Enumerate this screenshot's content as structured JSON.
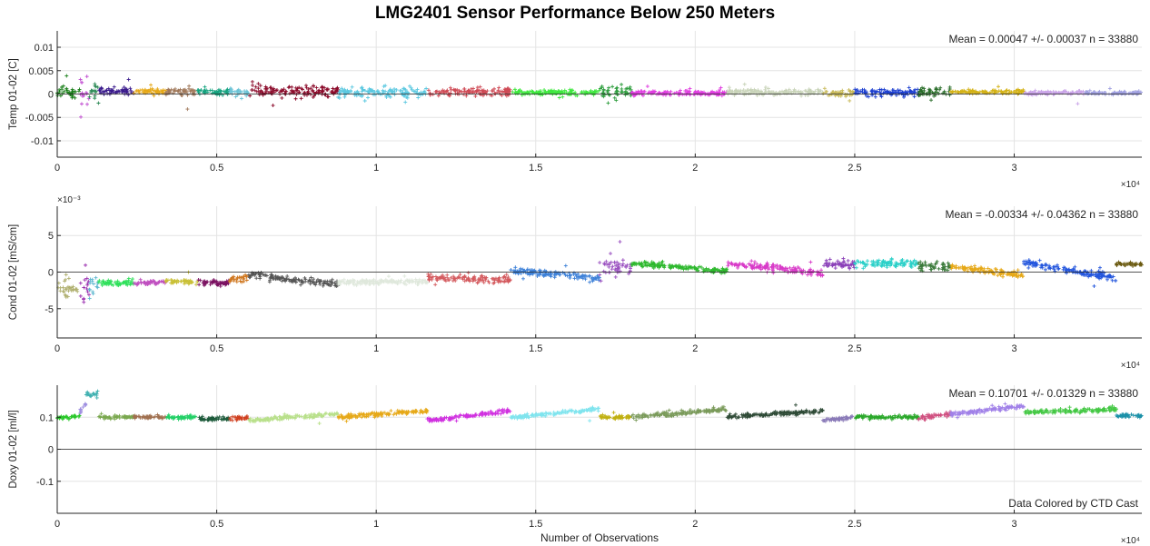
{
  "page": {
    "title": "LMG2401 Sensor Performance Below 250 Meters",
    "xlabel": "Number of Observations",
    "footnote": "Data Colored by CTD Cast"
  },
  "chart_data": [
    {
      "type": "scatter",
      "name": "temp",
      "ylabel": "Temp 01-02 [C]",
      "annotation": "Mean = 0.00047  +/-  0.00037  n = 33880",
      "xlim": [
        0,
        34000
      ],
      "ylim": [
        -0.0135,
        0.0135
      ],
      "x_ticks": [
        0,
        5000,
        10000,
        15000,
        20000,
        25000,
        30000
      ],
      "x_tick_labels": [
        "0",
        "0.5",
        "1",
        "1.5",
        "2",
        "2.5",
        "3"
      ],
      "x_exponent": "×10⁴",
      "y_ticks": [
        -0.01,
        -0.005,
        0,
        0.005,
        0.01
      ],
      "y_tick_labels": [
        "-0.01",
        "-0.005",
        "0",
        "0.005",
        "0.01"
      ],
      "y_exponent": "",
      "grid": true,
      "zero_line": true,
      "segments": [
        {
          "x": [
            0,
            700
          ],
          "y": [
            0.0006,
            0.0006
          ],
          "spread": 0.002,
          "color": "#1a7f1a"
        },
        {
          "x": [
            700,
            1000
          ],
          "y": [
            0.0005,
            0.0005
          ],
          "spread": 0.004,
          "color": "#c04bd0"
        },
        {
          "x": [
            1000,
            1300
          ],
          "y": [
            0.0006,
            0.0006
          ],
          "spread": 0.0025,
          "color": "#2e8b57"
        },
        {
          "x": [
            1300,
            2400
          ],
          "y": [
            0.0006,
            0.0006
          ],
          "spread": 0.0008,
          "color": "#3a1a8c"
        },
        {
          "x": [
            2400,
            3400
          ],
          "y": [
            0.0005,
            0.0005
          ],
          "spread": 0.0006,
          "color": "#e6a817"
        },
        {
          "x": [
            3400,
            4400
          ],
          "y": [
            0.0005,
            0.0005
          ],
          "spread": 0.0007,
          "color": "#a0785a"
        },
        {
          "x": [
            4400,
            5400
          ],
          "y": [
            0.0005,
            0.0005
          ],
          "spread": 0.0007,
          "color": "#14a37f"
        },
        {
          "x": [
            5400,
            6000
          ],
          "y": [
            0.0004,
            0.0004
          ],
          "spread": 0.0009,
          "color": "#6bc3d6"
        },
        {
          "x": [
            6000,
            8800
          ],
          "y": [
            0.0006,
            0.0006
          ],
          "spread": 0.0012,
          "color": "#8b0a2a"
        },
        {
          "x": [
            8800,
            11600
          ],
          "y": [
            0.0003,
            0.0003
          ],
          "spread": 0.0012,
          "color": "#5bc8e0"
        },
        {
          "x": [
            11600,
            14200
          ],
          "y": [
            0.0004,
            0.0004
          ],
          "spread": 0.0009,
          "color": "#cf4a55"
        },
        {
          "x": [
            14200,
            17000
          ],
          "y": [
            0.0003,
            0.0003
          ],
          "spread": 0.0006,
          "color": "#3ee83e"
        },
        {
          "x": [
            17000,
            18000
          ],
          "y": [
            0.0004,
            0.0004
          ],
          "spread": 0.0016,
          "color": "#2f9e3f"
        },
        {
          "x": [
            18000,
            21000
          ],
          "y": [
            0.0002,
            0.0002
          ],
          "spread": 0.0006,
          "color": "#e03ce0"
        },
        {
          "x": [
            21000,
            24000
          ],
          "y": [
            0.0004,
            0.0004
          ],
          "spread": 0.0007,
          "color": "#c8d3b8"
        },
        {
          "x": [
            24000,
            25000
          ],
          "y": [
            0.0003,
            0.0003
          ],
          "spread": 0.0008,
          "color": "#c9ba5a"
        },
        {
          "x": [
            25000,
            27000
          ],
          "y": [
            0.0003,
            0.0003
          ],
          "spread": 0.0008,
          "color": "#1c3fd0"
        },
        {
          "x": [
            27000,
            28000
          ],
          "y": [
            0.0004,
            0.0004
          ],
          "spread": 0.0012,
          "color": "#2a6e2a"
        },
        {
          "x": [
            28000,
            30300
          ],
          "y": [
            0.0004,
            0.0004
          ],
          "spread": 0.0005,
          "color": "#d4b216"
        },
        {
          "x": [
            30300,
            32200
          ],
          "y": [
            0.0003,
            0.0003
          ],
          "spread": 0.0005,
          "color": "#c9a3e8"
        },
        {
          "x": [
            32200,
            34000
          ],
          "y": [
            0.0002,
            0.0002
          ],
          "spread": 0.0004,
          "color": "#9f9fe0"
        }
      ]
    },
    {
      "type": "scatter",
      "name": "cond",
      "ylabel": "Cond 01-02 [mS/cm]",
      "annotation": "Mean = -0.00334  +/-  0.04362  n = 33880",
      "xlim": [
        0,
        34000
      ],
      "ylim": [
        -9,
        9
      ],
      "x_ticks": [
        0,
        5000,
        10000,
        15000,
        20000,
        25000,
        30000
      ],
      "x_tick_labels": [
        "0",
        "0.5",
        "1",
        "1.5",
        "2",
        "2.5",
        "3"
      ],
      "x_exponent": "×10⁴",
      "y_ticks": [
        -5,
        0,
        5
      ],
      "y_tick_labels": [
        "-5",
        "0",
        "5"
      ],
      "y_exponent": "×10⁻³",
      "grid": true,
      "zero_line": true,
      "segments": [
        {
          "x": [
            0,
            700
          ],
          "y": [
            -2.5,
            -2.2
          ],
          "spread": 1.2,
          "color": "#b0b070"
        },
        {
          "x": [
            700,
            1000
          ],
          "y": [
            -2.0,
            -1.8
          ],
          "spread": 2.5,
          "color": "#9b30b0"
        },
        {
          "x": [
            1000,
            1300
          ],
          "y": [
            -1.8,
            -1.6
          ],
          "spread": 1.2,
          "color": "#5fb8d0"
        },
        {
          "x": [
            1300,
            2400
          ],
          "y": [
            -1.6,
            -1.4
          ],
          "spread": 0.4,
          "color": "#2ee05a"
        },
        {
          "x": [
            2400,
            3400
          ],
          "y": [
            -1.5,
            -1.4
          ],
          "spread": 0.4,
          "color": "#c050c0"
        },
        {
          "x": [
            3400,
            4400
          ],
          "y": [
            -1.3,
            -1.4
          ],
          "spread": 0.4,
          "color": "#c9c037"
        },
        {
          "x": [
            4400,
            5400
          ],
          "y": [
            -1.6,
            -1.4
          ],
          "spread": 0.4,
          "color": "#7a1060"
        },
        {
          "x": [
            5400,
            6000
          ],
          "y": [
            -1.1,
            -0.7
          ],
          "spread": 0.5,
          "color": "#d07820"
        },
        {
          "x": [
            6000,
            8800
          ],
          "y": [
            -0.4,
            -1.7
          ],
          "spread": 0.5,
          "color": "#555555"
        },
        {
          "x": [
            8800,
            11600
          ],
          "y": [
            -1.3,
            -1.3
          ],
          "spread": 0.4,
          "color": "#dfe8dc"
        },
        {
          "x": [
            11600,
            14200
          ],
          "y": [
            -0.7,
            -1.1
          ],
          "spread": 0.5,
          "color": "#d45a5e"
        },
        {
          "x": [
            14200,
            17000
          ],
          "y": [
            0.2,
            -0.8
          ],
          "spread": 0.5,
          "color": "#3c80d8"
        },
        {
          "x": [
            17000,
            18000
          ],
          "y": [
            0.4,
            0.8
          ],
          "spread": 1.4,
          "color": "#9a50c0"
        },
        {
          "x": [
            18000,
            21000
          ],
          "y": [
            1.2,
            0.2
          ],
          "spread": 0.4,
          "color": "#2db82d"
        },
        {
          "x": [
            21000,
            24000
          ],
          "y": [
            1.2,
            -0.2
          ],
          "spread": 0.5,
          "color": "#d83ac8"
        },
        {
          "x": [
            24000,
            25000
          ],
          "y": [
            1.2,
            1.0
          ],
          "spread": 0.6,
          "color": "#8a3fb8"
        },
        {
          "x": [
            25000,
            27000
          ],
          "y": [
            1.1,
            1.2
          ],
          "spread": 0.5,
          "color": "#2ad0c8"
        },
        {
          "x": [
            27000,
            28000
          ],
          "y": [
            1.0,
            0.6
          ],
          "spread": 0.8,
          "color": "#3a7a3a"
        },
        {
          "x": [
            28000,
            30300
          ],
          "y": [
            0.8,
            -0.5
          ],
          "spread": 0.4,
          "color": "#e6a817"
        },
        {
          "x": [
            30300,
            33200
          ],
          "y": [
            1.3,
            -0.9
          ],
          "spread": 0.5,
          "color": "#2255dd"
        },
        {
          "x": [
            33200,
            34000
          ],
          "y": [
            1.1,
            1.1
          ],
          "spread": 0.3,
          "color": "#6b5a10"
        }
      ]
    },
    {
      "type": "scatter",
      "name": "doxy",
      "ylabel": "Doxy 01-02 [ml/l]",
      "annotation": "Mean = 0.10701  +/-  0.01329  n = 33880",
      "xlim": [
        0,
        34000
      ],
      "ylim": [
        -0.2,
        0.2
      ],
      "x_ticks": [
        0,
        5000,
        10000,
        15000,
        20000,
        25000,
        30000
      ],
      "x_tick_labels": [
        "0",
        "0.5",
        "1",
        "1.5",
        "2",
        "2.5",
        "3"
      ],
      "x_exponent": "×10⁴",
      "y_ticks": [
        -0.1,
        0,
        0.1
      ],
      "y_tick_labels": [
        "-0.1",
        "0",
        "0.1"
      ],
      "y_exponent": "",
      "grid": true,
      "zero_line": true,
      "segments": [
        {
          "x": [
            0,
            700
          ],
          "y": [
            0.1,
            0.1
          ],
          "spread": 0.006,
          "color": "#2ac82a"
        },
        {
          "x": [
            700,
            900
          ],
          "y": [
            0.12,
            0.14
          ],
          "spread": 0.01,
          "color": "#9f8fe0"
        },
        {
          "x": [
            900,
            1300
          ],
          "y": [
            0.175,
            0.17
          ],
          "spread": 0.01,
          "color": "#3fb0b0"
        },
        {
          "x": [
            1300,
            2400
          ],
          "y": [
            0.1,
            0.1
          ],
          "spread": 0.006,
          "color": "#7aa84f"
        },
        {
          "x": [
            2400,
            3400
          ],
          "y": [
            0.1,
            0.1
          ],
          "spread": 0.006,
          "color": "#a07050"
        },
        {
          "x": [
            3400,
            4400
          ],
          "y": [
            0.1,
            0.1
          ],
          "spread": 0.006,
          "color": "#22d066"
        },
        {
          "x": [
            4400,
            5400
          ],
          "y": [
            0.095,
            0.095
          ],
          "spread": 0.006,
          "color": "#1c5a3a"
        },
        {
          "x": [
            5400,
            6000
          ],
          "y": [
            0.095,
            0.1
          ],
          "spread": 0.01,
          "color": "#d04020"
        },
        {
          "x": [
            6000,
            8800
          ],
          "y": [
            0.09,
            0.11
          ],
          "spread": 0.007,
          "color": "#b8e08a"
        },
        {
          "x": [
            8800,
            11600
          ],
          "y": [
            0.1,
            0.12
          ],
          "spread": 0.007,
          "color": "#e6a817"
        },
        {
          "x": [
            11600,
            14200
          ],
          "y": [
            0.09,
            0.12
          ],
          "spread": 0.007,
          "color": "#d030e0"
        },
        {
          "x": [
            14200,
            17000
          ],
          "y": [
            0.1,
            0.125
          ],
          "spread": 0.007,
          "color": "#7fe4ee"
        },
        {
          "x": [
            17000,
            18000
          ],
          "y": [
            0.1,
            0.1
          ],
          "spread": 0.006,
          "color": "#c0b010"
        },
        {
          "x": [
            18000,
            21000
          ],
          "y": [
            0.1,
            0.125
          ],
          "spread": 0.007,
          "color": "#7a9a5a"
        },
        {
          "x": [
            21000,
            24000
          ],
          "y": [
            0.1,
            0.12
          ],
          "spread": 0.007,
          "color": "#2e4a36"
        },
        {
          "x": [
            24000,
            25000
          ],
          "y": [
            0.09,
            0.1
          ],
          "spread": 0.006,
          "color": "#8a7ab8"
        },
        {
          "x": [
            25000,
            27000
          ],
          "y": [
            0.1,
            0.1
          ],
          "spread": 0.006,
          "color": "#2aa82a"
        },
        {
          "x": [
            27000,
            28000
          ],
          "y": [
            0.1,
            0.11
          ],
          "spread": 0.008,
          "color": "#d05080"
        },
        {
          "x": [
            28000,
            30300
          ],
          "y": [
            0.11,
            0.135
          ],
          "spread": 0.007,
          "color": "#a080e8"
        },
        {
          "x": [
            30300,
            33200
          ],
          "y": [
            0.115,
            0.125
          ],
          "spread": 0.007,
          "color": "#44c844"
        },
        {
          "x": [
            33200,
            34000
          ],
          "y": [
            0.105,
            0.105
          ],
          "spread": 0.006,
          "color": "#1a90a8"
        }
      ]
    }
  ]
}
